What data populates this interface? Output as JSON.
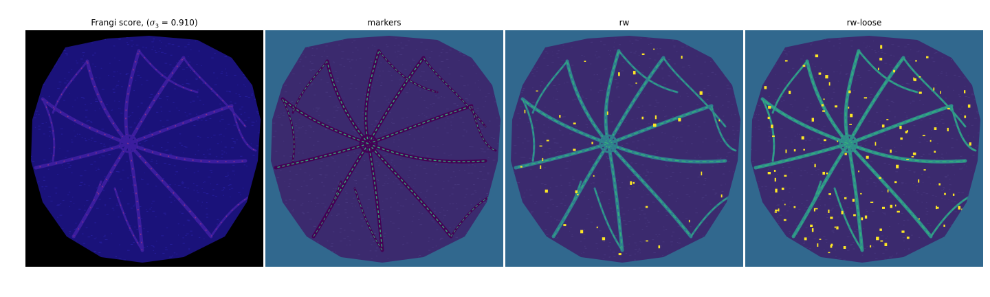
{
  "figure": {
    "panels": [
      {
        "title_prefix": "Frangi score, (",
        "title_symbol": "σ",
        "title_subscript": "3",
        "title_suffix": " = 0.910)",
        "background": "#000000",
        "texture": "#1a127a",
        "vessel": "#3b1d9e",
        "highlight": "#c0407a",
        "bright": "#f6d743"
      },
      {
        "title": "markers",
        "background": "#31688e",
        "texture": "#3b2a6e",
        "vessel": "#440154",
        "highlight": "#35b779",
        "bright": "#2a9e8e"
      },
      {
        "title": "rw",
        "background": "#31688e",
        "texture": "#3b2a6e",
        "vessel": "#2f7f8e",
        "highlight": "#35b779",
        "bright": "#fde725"
      },
      {
        "title": "rw-loose",
        "background": "#31688e",
        "texture": "#3b2a6e",
        "vessel": "#2f8e8a",
        "highlight": "#35b779",
        "bright": "#fde725"
      }
    ]
  }
}
